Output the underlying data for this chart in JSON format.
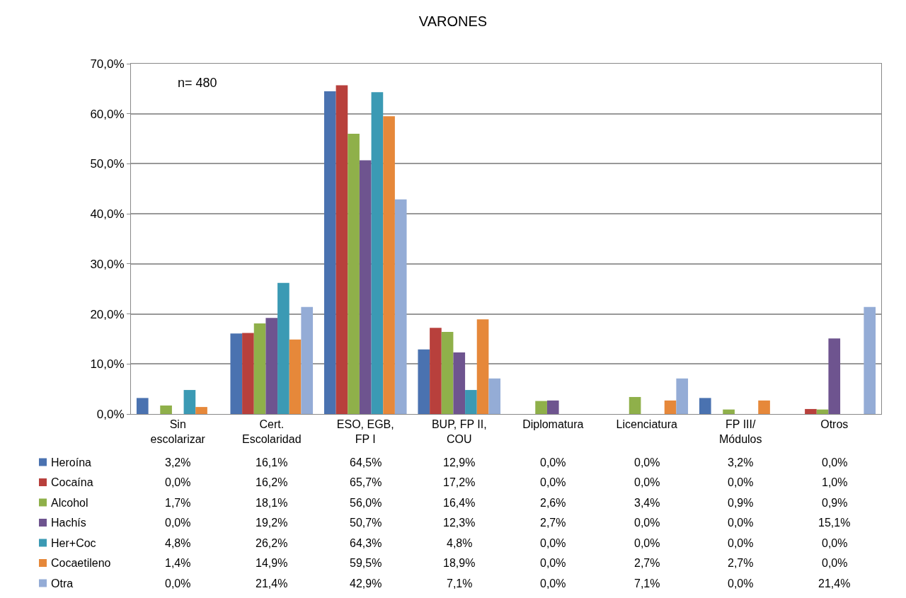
{
  "chart_data": {
    "type": "bar",
    "title": "VARONES",
    "categories": [
      "Sin\nescolarizar",
      "Cert.\nEscolaridad",
      "ESO, EGB,\nFP I",
      "BUP, FP II,\nCOU",
      "Diplomatura",
      "Licenciatura",
      "FP III/\nMódulos",
      "Otros"
    ],
    "series": [
      {
        "name": "Heroína",
        "color": "#4a72b0",
        "values": [
          3.2,
          16.1,
          64.5,
          12.9,
          0.0,
          0.0,
          3.2,
          0.0
        ],
        "value_labels": [
          "3,2%",
          "16,1%",
          "64,5%",
          "12,9%",
          "0,0%",
          "0,0%",
          "3,2%",
          "0,0%"
        ]
      },
      {
        "name": "Cocaína",
        "color": "#b8403c",
        "values": [
          0.0,
          16.2,
          65.7,
          17.2,
          0.0,
          0.0,
          0.0,
          1.0
        ],
        "value_labels": [
          "0,0%",
          "16,2%",
          "65,7%",
          "17,2%",
          "0,0%",
          "0,0%",
          "0,0%",
          "1,0%"
        ]
      },
      {
        "name": "Alcohol",
        "color": "#8fb04a",
        "values": [
          1.7,
          18.1,
          56.0,
          16.4,
          2.6,
          3.4,
          0.9,
          0.9
        ],
        "value_labels": [
          "1,7%",
          "18,1%",
          "56,0%",
          "16,4%",
          "2,6%",
          "3,4%",
          "0,9%",
          "0,9%"
        ]
      },
      {
        "name": "Hachís",
        "color": "#6e548f",
        "values": [
          0.0,
          19.2,
          50.7,
          12.3,
          2.7,
          0.0,
          0.0,
          15.1
        ],
        "value_labels": [
          "0,0%",
          "19,2%",
          "50,7%",
          "12,3%",
          "2,7%",
          "0,0%",
          "0,0%",
          "15,1%"
        ]
      },
      {
        "name": "Her+Coc",
        "color": "#3b9ab4",
        "values": [
          4.8,
          26.2,
          64.3,
          4.8,
          0.0,
          0.0,
          0.0,
          0.0
        ],
        "value_labels": [
          "4,8%",
          "26,2%",
          "64,3%",
          "4,8%",
          "0,0%",
          "0,0%",
          "0,0%",
          "0,0%"
        ]
      },
      {
        "name": "Cocaetileno",
        "color": "#e6883a",
        "values": [
          1.4,
          14.9,
          59.5,
          18.9,
          0.0,
          2.7,
          2.7,
          0.0
        ],
        "value_labels": [
          "1,4%",
          "14,9%",
          "59,5%",
          "18,9%",
          "0,0%",
          "2,7%",
          "2,7%",
          "0,0%"
        ]
      },
      {
        "name": "Otra",
        "color": "#94acd6",
        "values": [
          0.0,
          21.4,
          42.9,
          7.1,
          0.0,
          7.1,
          0.0,
          21.4
        ],
        "value_labels": [
          "0,0%",
          "21,4%",
          "42,9%",
          "7,1%",
          "0,0%",
          "7,1%",
          "0,0%",
          "21,4%"
        ]
      }
    ],
    "ylim": [
      0,
      70
    ],
    "yticks": [
      {
        "value": 0,
        "label": "0,0%"
      },
      {
        "value": 10,
        "label": "10,0%"
      },
      {
        "value": 20,
        "label": "20,0%"
      },
      {
        "value": 30,
        "label": "30,0%"
      },
      {
        "value": 40,
        "label": "40,0%"
      },
      {
        "value": 50,
        "label": "50,0%"
      },
      {
        "value": 60,
        "label": "60,0%"
      },
      {
        "value": 70,
        "label": "70,0%"
      }
    ],
    "grid": "y",
    "legend": "bottom",
    "annotations": [
      "n= 480"
    ]
  }
}
